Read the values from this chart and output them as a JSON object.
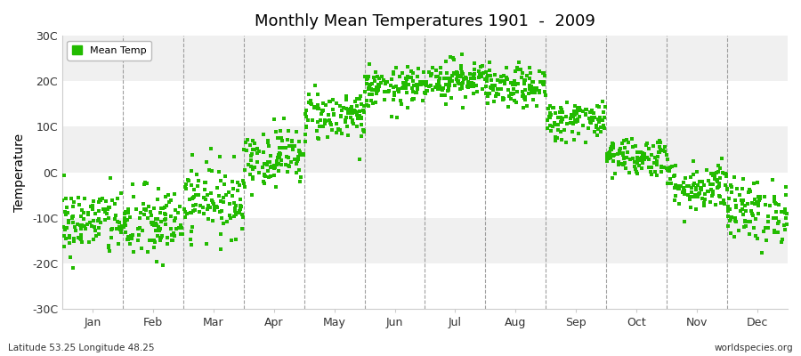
{
  "title": "Monthly Mean Temperatures 1901  -  2009",
  "ylabel": "Temperature",
  "ytick_labels": [
    "30C",
    "20C",
    "10C",
    "0C",
    "-10C",
    "-20C",
    "-30C"
  ],
  "ytick_values": [
    30,
    20,
    10,
    0,
    -10,
    -20,
    -30
  ],
  "ylim": [
    -30,
    30
  ],
  "months": [
    "Jan",
    "Feb",
    "Mar",
    "Apr",
    "May",
    "Jun",
    "Jul",
    "Aug",
    "Sep",
    "Oct",
    "Nov",
    "Dec"
  ],
  "subtitle_left": "Latitude 53.25 Longitude 48.25",
  "subtitle_right": "worldspecies.org",
  "legend_label": "Mean Temp",
  "dot_color": "#22bb00",
  "bg_color": "#f5f5f5",
  "band_colors": [
    "#f0f0f0",
    "#e8e8e8"
  ],
  "n_years": 109,
  "monthly_means": [
    -11.0,
    -11.5,
    -6.0,
    3.5,
    12.5,
    18.5,
    20.5,
    18.5,
    11.5,
    3.5,
    -3.0,
    -8.5
  ],
  "monthly_stds": [
    3.8,
    4.2,
    4.0,
    3.2,
    2.8,
    2.2,
    2.2,
    2.2,
    2.2,
    2.2,
    2.8,
    3.5
  ],
  "seed": 42
}
